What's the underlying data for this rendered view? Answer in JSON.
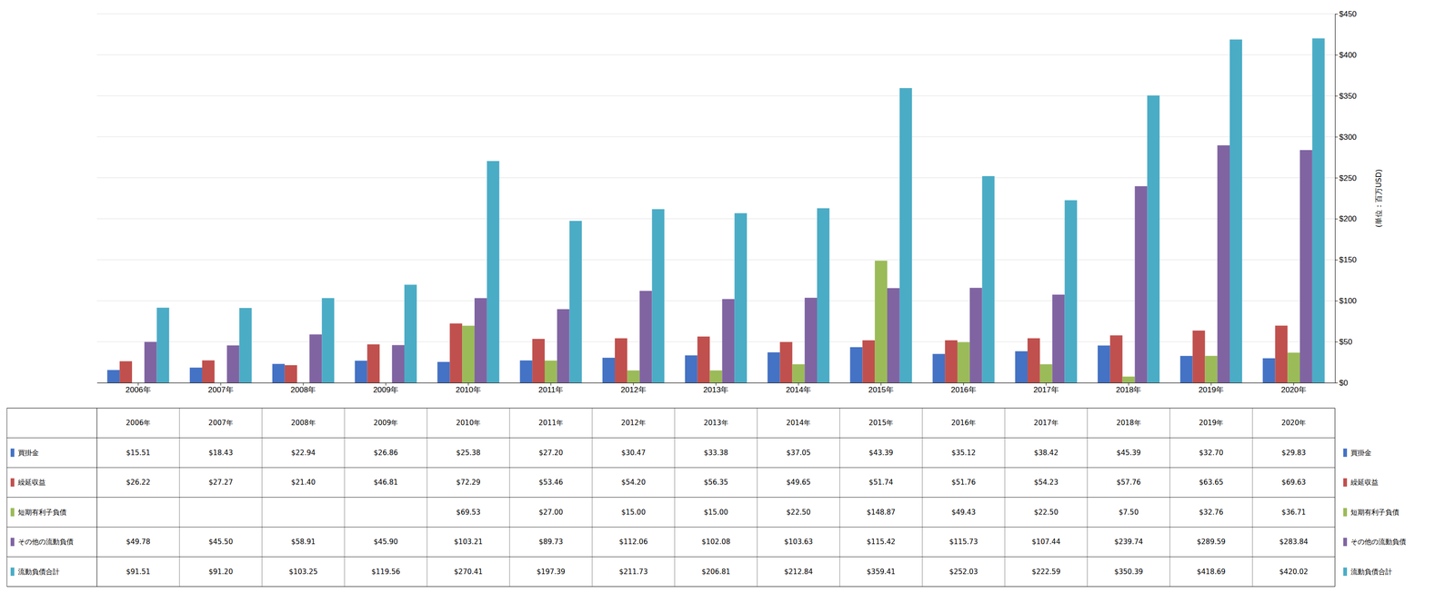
{
  "chart_data": {
    "type": "bar",
    "categories": [
      "2006年",
      "2007年",
      "2008年",
      "2009年",
      "2010年",
      "2011年",
      "2012年",
      "2013年",
      "2014年",
      "2015年",
      "2016年",
      "2017年",
      "2018年",
      "2019年",
      "2020年"
    ],
    "series": [
      {
        "name": "買掛金",
        "color": "#4472C4",
        "values": [
          15.51,
          18.43,
          22.94,
          26.86,
          25.38,
          27.2,
          30.47,
          33.38,
          37.05,
          43.39,
          35.12,
          38.42,
          45.39,
          32.7,
          29.83
        ],
        "value_labels": [
          "$15.51",
          "$18.43",
          "$22.94",
          "$26.86",
          "$25.38",
          "$27.20",
          "$30.47",
          "$33.38",
          "$37.05",
          "$43.39",
          "$35.12",
          "$38.42",
          "$45.39",
          "$32.70",
          "$29.83"
        ]
      },
      {
        "name": "繰延収益",
        "color": "#C0504D",
        "values": [
          26.22,
          27.27,
          21.4,
          46.81,
          72.29,
          53.46,
          54.2,
          56.35,
          49.65,
          51.74,
          51.76,
          54.23,
          57.76,
          63.65,
          69.63
        ],
        "value_labels": [
          "$26.22",
          "$27.27",
          "$21.40",
          "$46.81",
          "$72.29",
          "$53.46",
          "$54.20",
          "$56.35",
          "$49.65",
          "$51.74",
          "$51.76",
          "$54.23",
          "$57.76",
          "$63.65",
          "$69.63"
        ]
      },
      {
        "name": "短期有利子負債",
        "color": "#9BBB59",
        "values": [
          0,
          0,
          0,
          0,
          69.53,
          27.0,
          15.0,
          15.0,
          22.5,
          148.87,
          49.43,
          22.5,
          7.5,
          32.76,
          36.71
        ],
        "value_labels": [
          null,
          null,
          null,
          null,
          "$69.53",
          "$27.00",
          "$15.00",
          "$15.00",
          "$22.50",
          "$148.87",
          "$49.43",
          "$22.50",
          "$7.50",
          "$32.76",
          "$36.71"
        ]
      },
      {
        "name": "その他の流動負債",
        "color": "#8064A2",
        "values": [
          49.78,
          45.5,
          58.91,
          45.9,
          103.21,
          89.73,
          112.06,
          102.08,
          103.63,
          115.42,
          115.73,
          107.44,
          239.74,
          289.59,
          283.84
        ],
        "value_labels": [
          "$49.78",
          "$45.50",
          "$58.91",
          "$45.90",
          "$103.21",
          "$89.73",
          "$112.06",
          "$102.08",
          "$103.63",
          "$115.42",
          "$115.73",
          "$107.44",
          "$239.74",
          "$289.59",
          "$283.84"
        ]
      },
      {
        "name": "流動負債合計",
        "color": "#4BACC6",
        "values": [
          91.51,
          91.2,
          103.25,
          119.56,
          270.41,
          197.39,
          211.73,
          206.81,
          212.84,
          359.41,
          252.03,
          222.59,
          350.39,
          418.69,
          420.02
        ],
        "value_labels": [
          "$91.51",
          "$91.20",
          "$103.25",
          "$119.56",
          "$270.41",
          "$197.39",
          "$211.73",
          "$206.81",
          "$212.84",
          "$359.41",
          "$252.03",
          "$222.59",
          "$350.39",
          "$418.69",
          "$420.02"
        ]
      }
    ],
    "ylim": [
      0,
      450
    ],
    "yticks": [
      {
        "value": 0,
        "label": "$0"
      },
      {
        "value": 50,
        "label": "$50"
      },
      {
        "value": 100,
        "label": "$100"
      },
      {
        "value": 150,
        "label": "$150"
      },
      {
        "value": 200,
        "label": "$200"
      },
      {
        "value": 250,
        "label": "$250"
      },
      {
        "value": 300,
        "label": "$300"
      },
      {
        "value": 350,
        "label": "$350"
      },
      {
        "value": 400,
        "label": "$400"
      },
      {
        "value": 450,
        "label": "$450"
      }
    ],
    "ylabel": "(単位：百万USD)",
    "grid": true
  }
}
